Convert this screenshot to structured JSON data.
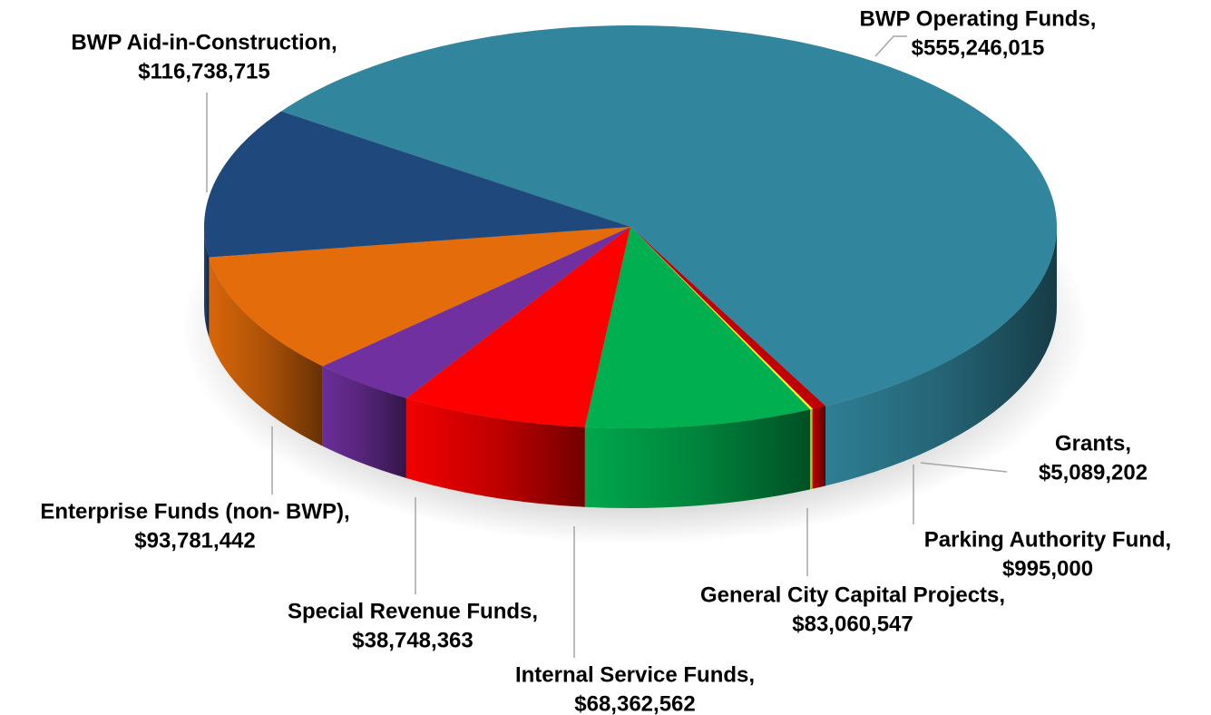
{
  "chart_data": {
    "type": "pie",
    "categories": [
      "BWP Operating Funds,",
      "Grants,",
      "Parking Authority Fund,",
      "General City Capital Projects,",
      "Internal Service Funds,",
      "Special Revenue Funds,",
      "Enterprise Funds (non- BWP),",
      "BWP Aid-in-Construction,"
    ],
    "values": [
      555246015,
      5089202,
      995000,
      83060547,
      68362562,
      38748363,
      93781442,
      116738715
    ],
    "value_labels": [
      "$555,246,015",
      "$5,089,202",
      "$995,000",
      "$83,060,547",
      "$68,362,562",
      "$38,748,363",
      "$93,781,442",
      "$116,738,715"
    ],
    "colors": [
      "#31859c",
      "#c00000",
      "#ffff00",
      "#00b050",
      "#ff0000",
      "#7030a0",
      "#e46c0a",
      "#1f497d"
    ]
  }
}
